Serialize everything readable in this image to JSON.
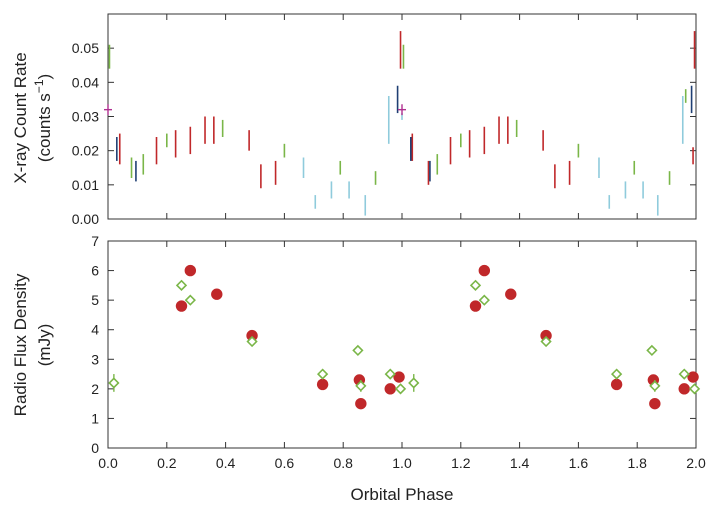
{
  "colors": {
    "red": "#c0282a",
    "green": "#7ab648",
    "cyan": "#8fcbdc",
    "navy": "#1f3f73",
    "magenta": "#b03090",
    "axis": "#333333"
  },
  "chart_data": [
    {
      "type": "error-bars",
      "name": "xray-panel",
      "ylabel_line1": "X-ray Count Rate",
      "ylabel_line2_prefix": "(counts s",
      "ylabel_line2_sup": "−1",
      "ylabel_line2_suffix": ")",
      "xlim": [
        0,
        2
      ],
      "ylim": [
        0,
        0.06
      ],
      "yticks": [
        "0.00",
        "0.01",
        "0.02",
        "0.03",
        "0.04",
        "0.05"
      ],
      "ytick_values": [
        0,
        0.01,
        0.02,
        0.03,
        0.04,
        0.05
      ],
      "series": [
        {
          "name": "red",
          "color": "red",
          "points": [
            {
              "x": 0.04,
              "ylo": 0.016,
              "yhi": 0.025
            },
            {
              "x": 0.165,
              "ylo": 0.016,
              "yhi": 0.024
            },
            {
              "x": 0.23,
              "ylo": 0.018,
              "yhi": 0.026
            },
            {
              "x": 0.28,
              "ylo": 0.019,
              "yhi": 0.027
            },
            {
              "x": 0.33,
              "ylo": 0.022,
              "yhi": 0.03
            },
            {
              "x": 0.36,
              "ylo": 0.022,
              "yhi": 0.03
            },
            {
              "x": 0.48,
              "ylo": 0.02,
              "yhi": 0.026
            },
            {
              "x": 0.52,
              "ylo": 0.009,
              "yhi": 0.016
            },
            {
              "x": 0.57,
              "ylo": 0.01,
              "yhi": 0.017
            },
            {
              "x": 0.995,
              "ylo": 0.044,
              "yhi": 0.055
            },
            {
              "x": 1.035,
              "ylo": 0.017,
              "yhi": 0.025
            },
            {
              "x": 1.09,
              "ylo": 0.01,
              "yhi": 0.017
            },
            {
              "x": 1.165,
              "ylo": 0.016,
              "yhi": 0.024
            },
            {
              "x": 1.23,
              "ylo": 0.018,
              "yhi": 0.026
            },
            {
              "x": 1.28,
              "ylo": 0.019,
              "yhi": 0.027
            },
            {
              "x": 1.33,
              "ylo": 0.022,
              "yhi": 0.03
            },
            {
              "x": 1.36,
              "ylo": 0.022,
              "yhi": 0.03
            },
            {
              "x": 1.48,
              "ylo": 0.02,
              "yhi": 0.026
            },
            {
              "x": 1.52,
              "ylo": 0.009,
              "yhi": 0.016
            },
            {
              "x": 1.57,
              "ylo": 0.01,
              "yhi": 0.017
            },
            {
              "x": 1.99,
              "ylo": 0.016,
              "yhi": 0.021
            },
            {
              "x": 1.995,
              "ylo": 0.044,
              "yhi": 0.055
            }
          ]
        },
        {
          "name": "green",
          "color": "green",
          "points": [
            {
              "x": 0.005,
              "ylo": 0.044,
              "yhi": 0.051
            },
            {
              "x": 0.08,
              "ylo": 0.012,
              "yhi": 0.018
            },
            {
              "x": 0.12,
              "ylo": 0.013,
              "yhi": 0.019
            },
            {
              "x": 0.2,
              "ylo": 0.021,
              "yhi": 0.025
            },
            {
              "x": 0.39,
              "ylo": 0.024,
              "yhi": 0.029
            },
            {
              "x": 0.6,
              "ylo": 0.018,
              "yhi": 0.022
            },
            {
              "x": 0.79,
              "ylo": 0.013,
              "yhi": 0.017
            },
            {
              "x": 0.91,
              "ylo": 0.01,
              "yhi": 0.014
            },
            {
              "x": 1.005,
              "ylo": 0.044,
              "yhi": 0.051
            },
            {
              "x": 1.12,
              "ylo": 0.013,
              "yhi": 0.019
            },
            {
              "x": 1.2,
              "ylo": 0.021,
              "yhi": 0.025
            },
            {
              "x": 1.39,
              "ylo": 0.024,
              "yhi": 0.029
            },
            {
              "x": 1.6,
              "ylo": 0.018,
              "yhi": 0.022
            },
            {
              "x": 1.79,
              "ylo": 0.013,
              "yhi": 0.017
            },
            {
              "x": 1.91,
              "ylo": 0.01,
              "yhi": 0.014
            },
            {
              "x": 1.965,
              "ylo": 0.034,
              "yhi": 0.038
            }
          ]
        },
        {
          "name": "cyan",
          "color": "cyan",
          "points": [
            {
              "x": 0.665,
              "ylo": 0.012,
              "yhi": 0.018
            },
            {
              "x": 0.705,
              "ylo": 0.003,
              "yhi": 0.007
            },
            {
              "x": 0.76,
              "ylo": 0.006,
              "yhi": 0.011
            },
            {
              "x": 0.82,
              "ylo": 0.006,
              "yhi": 0.011
            },
            {
              "x": 0.875,
              "ylo": 0.001,
              "yhi": 0.007
            },
            {
              "x": 0.955,
              "ylo": 0.022,
              "yhi": 0.036
            },
            {
              "x": 1.0,
              "ylo": 0.029,
              "yhi": 0.031
            },
            {
              "x": 1.67,
              "ylo": 0.012,
              "yhi": 0.018
            },
            {
              "x": 1.705,
              "ylo": 0.003,
              "yhi": 0.007
            },
            {
              "x": 1.76,
              "ylo": 0.006,
              "yhi": 0.011
            },
            {
              "x": 1.82,
              "ylo": 0.006,
              "yhi": 0.011
            },
            {
              "x": 1.87,
              "ylo": 0.001,
              "yhi": 0.007
            },
            {
              "x": 1.955,
              "ylo": 0.022,
              "yhi": 0.036
            }
          ]
        },
        {
          "name": "navy",
          "color": "navy",
          "points": [
            {
              "x": 0.03,
              "ylo": 0.017,
              "yhi": 0.024
            },
            {
              "x": 0.095,
              "ylo": 0.011,
              "yhi": 0.017
            },
            {
              "x": 0.985,
              "ylo": 0.031,
              "yhi": 0.039
            },
            {
              "x": 1.03,
              "ylo": 0.017,
              "yhi": 0.024
            },
            {
              "x": 1.095,
              "ylo": 0.011,
              "yhi": 0.017
            },
            {
              "x": 1.985,
              "ylo": 0.031,
              "yhi": 0.039
            }
          ]
        },
        {
          "name": "magenta",
          "color": "magenta",
          "points": [
            {
              "x": 0.0,
              "ylo": 0.031,
              "yhi": 0.033
            },
            {
              "x": 1.0,
              "ylo": 0.031,
              "yhi": 0.033
            }
          ]
        }
      ]
    },
    {
      "type": "scatter",
      "name": "radio-panel",
      "ylabel_line1": "Radio Flux Density",
      "ylabel_line2": "(mJy)",
      "xlabel": "Orbital Phase",
      "xlim": [
        0,
        2
      ],
      "ylim": [
        0,
        7
      ],
      "xticks": [
        "0.0",
        "0.2",
        "0.4",
        "0.6",
        "0.8",
        "1.0",
        "1.2",
        "1.4",
        "1.6",
        "1.8",
        "2.0"
      ],
      "xtick_values": [
        0,
        0.2,
        0.4,
        0.6,
        0.8,
        1.0,
        1.2,
        1.4,
        1.6,
        1.8,
        2.0
      ],
      "yticks": [
        "0",
        "1",
        "2",
        "3",
        "4",
        "5",
        "6",
        "7"
      ],
      "ytick_values": [
        0,
        1,
        2,
        3,
        4,
        5,
        6,
        7
      ],
      "series": [
        {
          "name": "red-circles",
          "marker": "circle",
          "color": "red",
          "x": [
            0.25,
            0.28,
            0.37,
            0.49,
            0.73,
            0.855,
            0.86,
            0.96,
            0.99,
            1.25,
            1.28,
            1.37,
            1.49,
            1.73,
            1.855,
            1.86,
            1.96,
            1.99
          ],
          "y": [
            4.8,
            6.0,
            5.2,
            3.8,
            2.15,
            2.3,
            1.5,
            2.0,
            2.4,
            4.8,
            6.0,
            5.2,
            3.8,
            2.15,
            2.3,
            1.5,
            2.0,
            2.4
          ]
        },
        {
          "name": "green-diamonds",
          "marker": "diamond",
          "color": "green",
          "x": [
            0.02,
            0.25,
            0.28,
            0.49,
            0.73,
            0.85,
            0.86,
            0.96,
            0.995,
            1.04,
            1.25,
            1.28,
            1.49,
            1.73,
            1.85,
            1.86,
            1.96,
            1.995
          ],
          "y": [
            2.2,
            5.5,
            5.0,
            3.6,
            2.5,
            3.3,
            2.1,
            2.5,
            2.0,
            2.2,
            5.5,
            5.0,
            3.6,
            2.5,
            3.3,
            2.1,
            2.5,
            2.0
          ],
          "errors": [
            0.3,
            0,
            0,
            0,
            0,
            0,
            0.2,
            0,
            0,
            0.3,
            0,
            0,
            0,
            0,
            0,
            0.2,
            0,
            0
          ]
        }
      ]
    }
  ]
}
